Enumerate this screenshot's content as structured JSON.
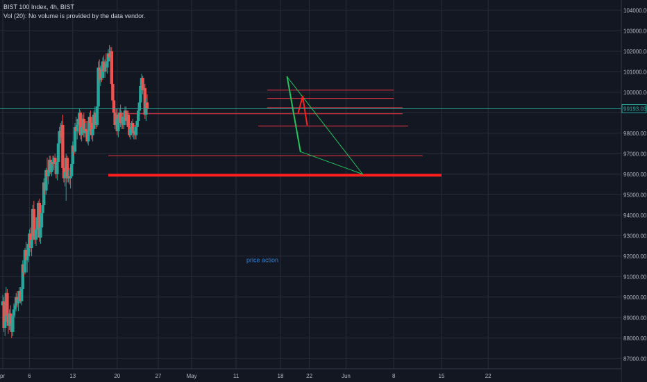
{
  "header": {
    "title": "BIST 100 Index, 4h, BIST",
    "volume_note": "Vol (20): No volume is provided by the data vendor."
  },
  "chart_data": {
    "type": "candlestick",
    "symbol": "BIST 100",
    "interval": "4h",
    "ylim": [
      86500,
      104500
    ],
    "y_ticks": [
      87000,
      88000,
      89000,
      90000,
      91000,
      92000,
      93000,
      94000,
      95000,
      96000,
      97000,
      98000,
      99000,
      100000,
      101000,
      102000,
      103000,
      104000
    ],
    "y_tick_labels": [
      "87000.00",
      "88000.00",
      "89000.00",
      "90000.00",
      "91000.00",
      "92000.00",
      "93000.00",
      "94000.00",
      "95000.00",
      "96000.00",
      "97000.00",
      "98000.00",
      "99000.00",
      "100000.00",
      "101000.00",
      "102000.00",
      "103000.00",
      "104000.00"
    ],
    "x_tick_labels": [
      "pr",
      "6",
      "13",
      "20",
      "27",
      "May",
      "11",
      "18",
      "22",
      "Jun",
      "8",
      "15",
      "22"
    ],
    "x_tick_index": [
      0,
      24,
      63,
      103,
      140,
      170,
      210,
      250,
      276,
      309,
      352,
      395,
      437
    ],
    "last_price": 99193.03,
    "last_price_label": "99193.03",
    "colors": {
      "up": "#26a69a",
      "down": "#ef5350",
      "grid": "#2a2e39",
      "price_line": "#26a69a"
    },
    "candles": [
      [
        89600,
        90100,
        89000,
        89800
      ],
      [
        89800,
        90000,
        88300,
        88500
      ],
      [
        88500,
        88900,
        88100,
        88800
      ],
      [
        88800,
        90500,
        88600,
        90200
      ],
      [
        90200,
        90400,
        88900,
        89100
      ],
      [
        89100,
        89500,
        88200,
        88600
      ],
      [
        88600,
        89400,
        88400,
        89200
      ],
      [
        89200,
        89600,
        88300,
        88700
      ],
      [
        88700,
        89000,
        88000,
        88300
      ],
      [
        88300,
        89300,
        88100,
        89100
      ],
      [
        89100,
        89700,
        88800,
        89400
      ],
      [
        89400,
        89800,
        89000,
        89600
      ],
      [
        89600,
        90200,
        89300,
        90000
      ],
      [
        90000,
        90300,
        89500,
        89700
      ],
      [
        89700,
        90100,
        89300,
        89900
      ],
      [
        89900,
        90500,
        89700,
        90300
      ],
      [
        90300,
        90500,
        89700,
        89800
      ],
      [
        89800,
        90600,
        89600,
        90400
      ],
      [
        90400,
        91800,
        90200,
        91600
      ],
      [
        91600,
        92200,
        91000,
        91200
      ],
      [
        91200,
        92400,
        91100,
        92300
      ],
      [
        92300,
        92700,
        91600,
        91800
      ],
      [
        91800,
        92300,
        91200,
        92000
      ],
      [
        92000,
        92800,
        91700,
        92600
      ],
      [
        92600,
        93300,
        92300,
        93100
      ],
      [
        93100,
        93400,
        92200,
        92400
      ],
      [
        92400,
        93000,
        92000,
        92800
      ],
      [
        92800,
        94500,
        92700,
        94300
      ],
      [
        94300,
        94700,
        92800,
        93000
      ],
      [
        93000,
        93200,
        92600,
        92800
      ],
      [
        92800,
        93500,
        92500,
        93300
      ],
      [
        93300,
        94100,
        93000,
        93900
      ],
      [
        93900,
        94700,
        93700,
        94600
      ],
      [
        94600,
        94800,
        92700,
        92900
      ],
      [
        92900,
        93600,
        92600,
        93400
      ],
      [
        93400,
        94300,
        93200,
        94100
      ],
      [
        94100,
        94800,
        93800,
        94500
      ],
      [
        94500,
        95800,
        94300,
        95600
      ],
      [
        95600,
        96000,
        95000,
        95200
      ],
      [
        95200,
        96300,
        95000,
        96200
      ],
      [
        96200,
        96800,
        95700,
        95900
      ],
      [
        95900,
        96400,
        95500,
        96200
      ],
      [
        96200,
        96900,
        96000,
        96700
      ],
      [
        96700,
        96900,
        96000,
        96100
      ],
      [
        96100,
        96700,
        95900,
        96600
      ],
      [
        96600,
        96900,
        96400,
        96500
      ],
      [
        96500,
        96900,
        96200,
        96800
      ],
      [
        96800,
        97000,
        96300,
        96500
      ],
      [
        96500,
        96800,
        95800,
        96000
      ],
      [
        96000,
        96800,
        95700,
        96600
      ],
      [
        96600,
        97700,
        96300,
        97500
      ],
      [
        97500,
        98300,
        97300,
        98100
      ],
      [
        98100,
        98500,
        97600,
        97800
      ],
      [
        97800,
        98600,
        97500,
        98400
      ],
      [
        98400,
        98900,
        96100,
        96300
      ],
      [
        96300,
        96700,
        95600,
        95800
      ],
      [
        95800,
        96300,
        95400,
        96100
      ],
      [
        96100,
        97000,
        94700,
        96800
      ],
      [
        96800,
        96900,
        95600,
        95800
      ],
      [
        95800,
        96200,
        95600,
        95900
      ],
      [
        95900,
        96300,
        95500,
        95800
      ],
      [
        95800,
        96100,
        95300,
        95900
      ],
      [
        95900,
        96700,
        95800,
        96500
      ],
      [
        96500,
        97600,
        96300,
        97400
      ],
      [
        97400,
        98100,
        96900,
        97100
      ],
      [
        97100,
        98500,
        97000,
        98300
      ],
      [
        98300,
        98800,
        97900,
        98100
      ],
      [
        98100,
        98700,
        97700,
        98400
      ],
      [
        98400,
        98900,
        98000,
        98700
      ],
      [
        98700,
        99200,
        98400,
        99000
      ],
      [
        99000,
        99100,
        97700,
        97900
      ],
      [
        97900,
        98500,
        97600,
        98300
      ],
      [
        98300,
        98900,
        98100,
        98700
      ],
      [
        98700,
        99000,
        97800,
        98000
      ],
      [
        98000,
        98500,
        97800,
        98200
      ],
      [
        98200,
        98600,
        97900,
        98100
      ],
      [
        98100,
        98600,
        97500,
        97600
      ],
      [
        97600,
        98300,
        97400,
        98100
      ],
      [
        98100,
        99000,
        97900,
        98800
      ],
      [
        98800,
        99100,
        98300,
        98500
      ],
      [
        98500,
        98800,
        97700,
        97900
      ],
      [
        97900,
        98400,
        97600,
        98200
      ],
      [
        98200,
        99100,
        98100,
        98900
      ],
      [
        98900,
        99300,
        98600,
        99000
      ],
      [
        99000,
        99300,
        98200,
        98400
      ],
      [
        98400,
        99500,
        98300,
        99300
      ],
      [
        99300,
        101500,
        99200,
        101200
      ],
      [
        101200,
        101600,
        100400,
        100600
      ],
      [
        100600,
        101300,
        100300,
        101100
      ],
      [
        101100,
        101500,
        100500,
        100700
      ],
      [
        100700,
        101700,
        100600,
        101500
      ],
      [
        101500,
        101800,
        100800,
        101000
      ],
      [
        101000,
        101600,
        100700,
        101400
      ],
      [
        101400,
        101900,
        101000,
        101200
      ],
      [
        101200,
        101700,
        100900,
        101500
      ],
      [
        101500,
        102100,
        101300,
        101900
      ],
      [
        101900,
        102300,
        101500,
        101700
      ],
      [
        101700,
        102200,
        101200,
        102000
      ],
      [
        102000,
        102200,
        100200,
        100400
      ],
      [
        100400,
        101000,
        99400,
        99600
      ],
      [
        99600,
        99900,
        98800,
        99000
      ],
      [
        99000,
        99300,
        98200,
        98400
      ],
      [
        98400,
        99200,
        98100,
        98900
      ],
      [
        98900,
        99200,
        97900,
        98100
      ],
      [
        98100,
        98900,
        97800,
        98700
      ],
      [
        98700,
        99200,
        98500,
        99000
      ],
      [
        99000,
        99400,
        98300,
        98500
      ],
      [
        98500,
        99100,
        98200,
        98800
      ],
      [
        98800,
        99000,
        98200,
        98400
      ],
      [
        98400,
        99000,
        98200,
        98800
      ],
      [
        98800,
        99300,
        98500,
        99100
      ],
      [
        99100,
        99300,
        98400,
        98600
      ],
      [
        98600,
        99100,
        98300,
        98900
      ],
      [
        98900,
        99100,
        98200,
        98300
      ],
      [
        98300,
        98700,
        97800,
        97900
      ],
      [
        97900,
        98400,
        97700,
        98200
      ],
      [
        98200,
        98600,
        98000,
        98500
      ],
      [
        98500,
        98700,
        97800,
        98000
      ],
      [
        98000,
        98300,
        97700,
        98100
      ],
      [
        98100,
        98400,
        97700,
        97900
      ],
      [
        97900,
        98500,
        97700,
        98300
      ],
      [
        98300,
        98700,
        98000,
        98600
      ],
      [
        98600,
        99300,
        98400,
        99100
      ],
      [
        99100,
        99800,
        98900,
        99500
      ],
      [
        99500,
        100500,
        99300,
        100300
      ],
      [
        100300,
        100900,
        100000,
        100700
      ],
      [
        100700,
        100800,
        99900,
        100100
      ],
      [
        100100,
        100500,
        99700,
        100200
      ],
      [
        100200,
        100400,
        98700,
        98900
      ],
      [
        98900,
        99700,
        98600,
        99500
      ],
      [
        99500,
        99900,
        99000,
        99193
      ]
    ],
    "horizontal_levels": [
      {
        "value": 100100,
        "color": "#f23645",
        "from_index": 238,
        "to_index": 352
      },
      {
        "value": 99700,
        "color": "#f23645",
        "from_index": 238,
        "to_index": 352
      },
      {
        "value": 99250,
        "color": "#f23645",
        "from_index": 238,
        "to_index": 360
      },
      {
        "value": 98950,
        "color": "#f23645",
        "from_index": 104,
        "to_index": 360
      },
      {
        "value": 98350,
        "color": "#f23645",
        "from_index": 230,
        "to_index": 365
      },
      {
        "value": 96900,
        "color": "#f23645",
        "from_index": 95,
        "to_index": 378
      },
      {
        "value": 95950,
        "color": "#ff1e1e",
        "from_index": 95,
        "to_index": 395,
        "thick": true
      }
    ],
    "drawings": [
      {
        "kind": "line",
        "color": "#22c55e",
        "width": 2,
        "points": [
          [
            256,
            100750
          ],
          [
            268,
            97100
          ]
        ]
      },
      {
        "kind": "line",
        "color": "#22c55e",
        "width": 1,
        "points": [
          [
            256,
            100750
          ],
          [
            324,
            96000
          ]
        ]
      },
      {
        "kind": "line",
        "color": "#22c55e",
        "width": 1,
        "points": [
          [
            268,
            97100
          ],
          [
            324,
            96000
          ]
        ]
      },
      {
        "kind": "line",
        "color": "#ff1e1e",
        "width": 2,
        "points": [
          [
            266,
            99000
          ],
          [
            270,
            99800
          ],
          [
            274,
            98400
          ]
        ]
      }
    ],
    "annotations": [
      {
        "text": "price action",
        "index": 215,
        "value": 91700
      }
    ]
  }
}
